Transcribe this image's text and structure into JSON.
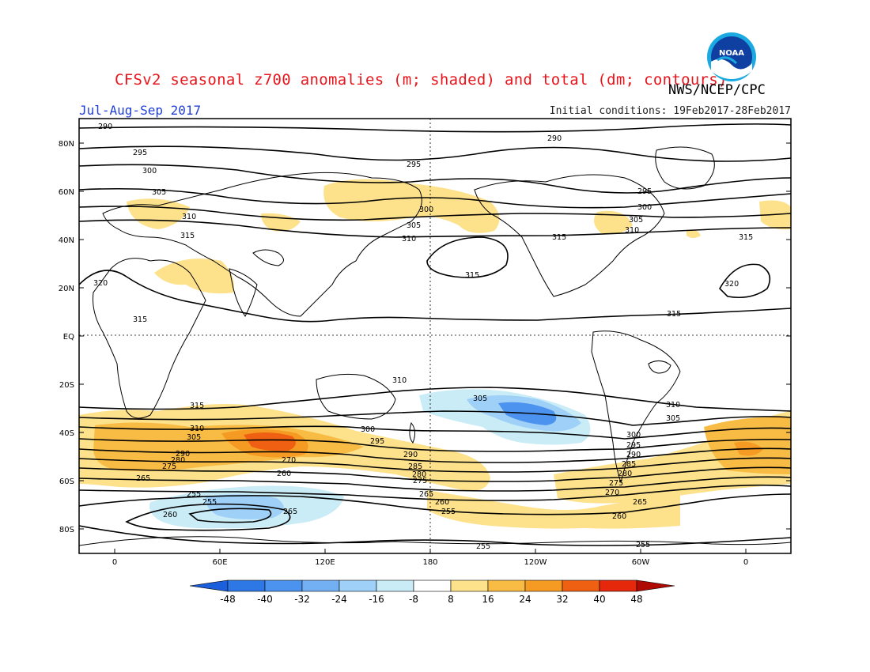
{
  "title": "CFSv2 seasonal z700 anomalies (m; shaded) and total (dm; contours)",
  "agency": "NWS/NCEP/CPC",
  "season": "Jul-Aug-Sep 2017",
  "initial_conditions": "Initial conditions: 19Feb2017-28Feb2017",
  "logo_text": "NOAA",
  "map": {
    "lat_ticks": [
      "80N",
      "60N",
      "40N",
      "20N",
      "EQ",
      "20S",
      "40S",
      "60S",
      "80S"
    ],
    "lon_ticks": [
      "0",
      "60E",
      "120E",
      "180",
      "120W",
      "60W",
      "0"
    ],
    "colorbar_labels": [
      "-48",
      "-40",
      "-32",
      "-24",
      "-16",
      "-8",
      "8",
      "16",
      "24",
      "32",
      "40",
      "48"
    ],
    "colorbar_colors": [
      "#1b5fdc",
      "#2e78e6",
      "#4b93ee",
      "#72b0f3",
      "#9fd0f8",
      "#c9ecf7",
      "#ffffff",
      "#fde18b",
      "#f8bc45",
      "#f59a23",
      "#f06012",
      "#e5280c",
      "#b00a05"
    ],
    "contour_labels": {
      "290": "290",
      "295": "295",
      "300": "300",
      "305": "305",
      "310": "310",
      "315": "315",
      "320": "320",
      "270": "270",
      "275": "275",
      "280": "280",
      "285": "285",
      "265": "265",
      "260": "260",
      "255": "255"
    }
  }
}
